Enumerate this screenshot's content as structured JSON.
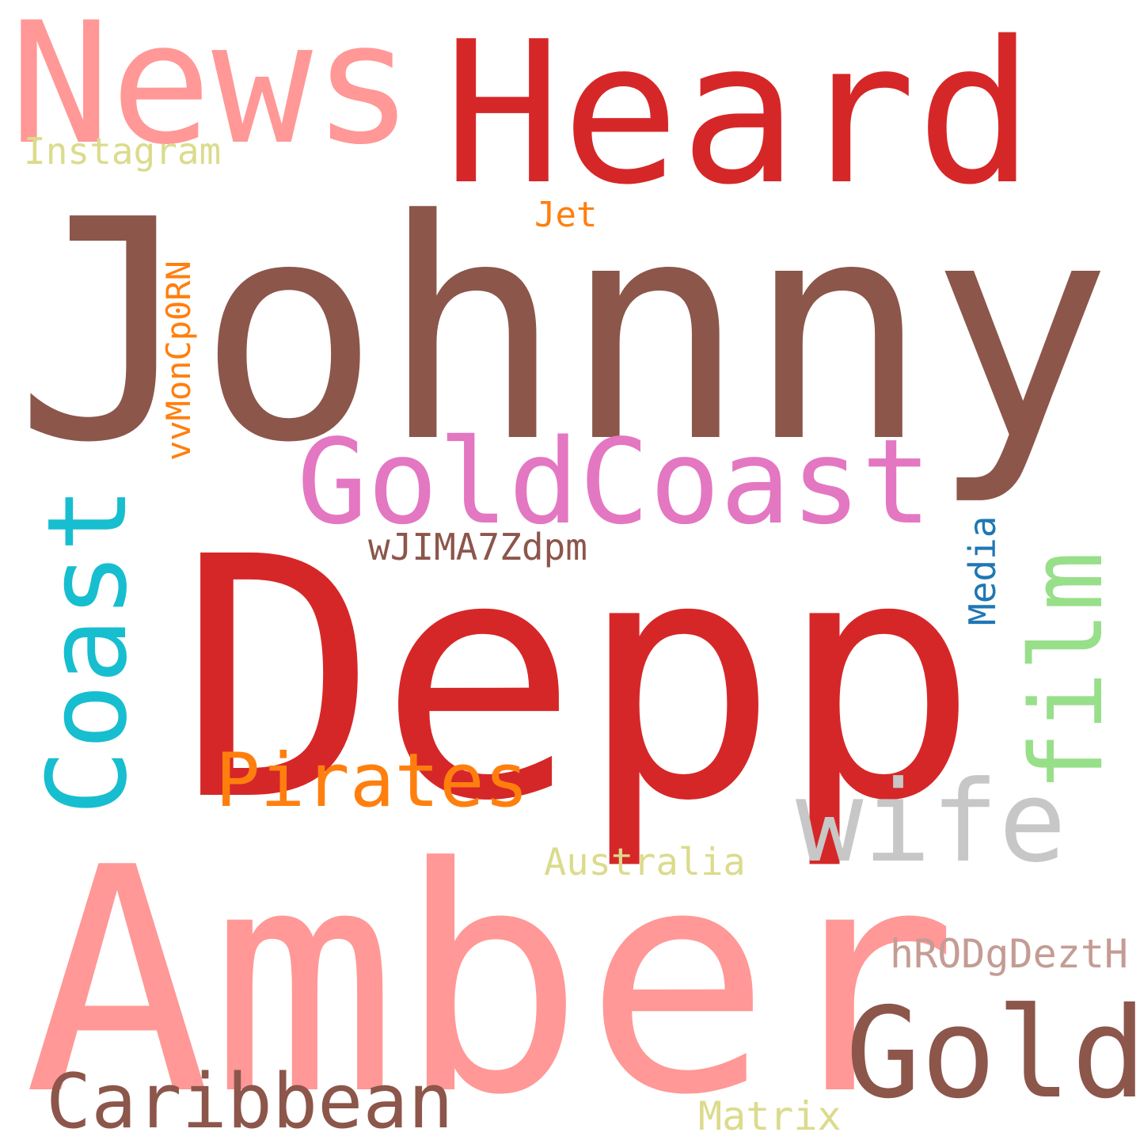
{
  "words": {
    "johnny": {
      "text": "Johnny",
      "color": "#8c564b"
    },
    "heard": {
      "text": "Heard",
      "color": "#d62728"
    },
    "news": {
      "text": "News",
      "color": "#ff9896"
    },
    "depp": {
      "text": "Depp",
      "color": "#d62728"
    },
    "amber": {
      "text": "Amber",
      "color": "#ff9896"
    },
    "goldcoast": {
      "text": "GoldCoast",
      "color": "#e377c2"
    },
    "gold": {
      "text": "Gold",
      "color": "#8c564b"
    },
    "wife": {
      "text": "wife",
      "color": "#c7c7c7"
    },
    "pirates": {
      "text": "Pirates",
      "color": "#ff7f0e"
    },
    "caribbean": {
      "text": "Caribbean",
      "color": "#8c564b"
    },
    "instagram": {
      "text": "Instagram",
      "color": "#dbdb8d"
    },
    "jet": {
      "text": "Jet",
      "color": "#ff7f0e"
    },
    "wjima": {
      "text": "wJIMA7Zdpm",
      "color": "#8c564b"
    },
    "australia": {
      "text": "Australia",
      "color": "#dbdb8d"
    },
    "matrix": {
      "text": "Matrix",
      "color": "#dbdb8d"
    },
    "hrodgdezth": {
      "text": "hRODgDeztH",
      "color": "#c49c94"
    },
    "coast": {
      "text": "Coast",
      "color": "#17becf"
    },
    "film": {
      "text": "film",
      "color": "#98df8a"
    },
    "media": {
      "text": "Media",
      "color": "#1f77b4"
    },
    "vvmon": {
      "text": "vvMonCp0RN",
      "color": "#ff7f0e"
    }
  }
}
